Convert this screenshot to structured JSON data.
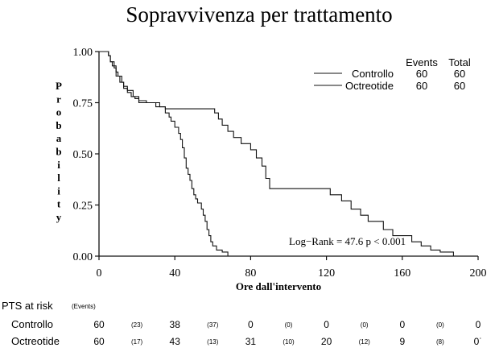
{
  "chart_data": {
    "type": "line",
    "subtype": "kaplan-meier",
    "title": "Sopravvivenza per trattamento",
    "xlabel": "Ore dall'intervento",
    "ylabel": "Probability",
    "xlim": [
      0,
      200
    ],
    "ylim": [
      0,
      1
    ],
    "x_ticks": [
      "0",
      "40",
      "80",
      "120",
      "160",
      "200"
    ],
    "y_ticks": [
      "0.00",
      "0.25",
      "0.50",
      "0.75",
      "1.00"
    ],
    "grid": false,
    "legend_position": "top-right",
    "legend_header": {
      "events": "Events",
      "total": "Total"
    },
    "series": [
      {
        "name": "Controllo",
        "events": "60",
        "total": "60",
        "color": "#111111",
        "steps": [
          [
            0,
            1.0
          ],
          [
            5,
            0.98
          ],
          [
            6,
            0.95
          ],
          [
            7,
            0.93
          ],
          [
            9,
            0.9
          ],
          [
            10,
            0.88
          ],
          [
            12,
            0.85
          ],
          [
            13,
            0.82
          ],
          [
            15,
            0.8
          ],
          [
            17,
            0.78
          ],
          [
            19,
            0.77
          ],
          [
            21,
            0.75
          ],
          [
            24,
            0.75
          ],
          [
            32,
            0.73
          ],
          [
            35,
            0.7
          ],
          [
            37,
            0.68
          ],
          [
            38,
            0.66
          ],
          [
            40,
            0.63
          ],
          [
            42,
            0.6
          ],
          [
            43,
            0.57
          ],
          [
            44,
            0.53
          ],
          [
            45,
            0.48
          ],
          [
            46,
            0.43
          ],
          [
            47,
            0.4
          ],
          [
            48,
            0.37
          ],
          [
            49,
            0.33
          ],
          [
            50,
            0.3
          ],
          [
            51,
            0.28
          ],
          [
            52,
            0.26
          ],
          [
            54,
            0.23
          ],
          [
            55,
            0.2
          ],
          [
            56,
            0.17
          ],
          [
            57,
            0.13
          ],
          [
            58,
            0.1
          ],
          [
            59,
            0.07
          ],
          [
            60,
            0.05
          ],
          [
            62,
            0.03
          ],
          [
            65,
            0.02
          ],
          [
            68,
            0.0
          ]
        ]
      },
      {
        "name": "Octreotide",
        "events": "60",
        "total": "60",
        "color": "#111111",
        "steps": [
          [
            0,
            1.0
          ],
          [
            5,
            0.98
          ],
          [
            6,
            0.95
          ],
          [
            8,
            0.92
          ],
          [
            9,
            0.88
          ],
          [
            11,
            0.85
          ],
          [
            13,
            0.83
          ],
          [
            15,
            0.81
          ],
          [
            18,
            0.78
          ],
          [
            21,
            0.76
          ],
          [
            25,
            0.75
          ],
          [
            30,
            0.73
          ],
          [
            35,
            0.72
          ],
          [
            55,
            0.72
          ],
          [
            60,
            0.72
          ],
          [
            61,
            0.7
          ],
          [
            63,
            0.67
          ],
          [
            65,
            0.64
          ],
          [
            68,
            0.61
          ],
          [
            71,
            0.58
          ],
          [
            75,
            0.55
          ],
          [
            80,
            0.52
          ],
          [
            83,
            0.48
          ],
          [
            86,
            0.44
          ],
          [
            88,
            0.38
          ],
          [
            90,
            0.33
          ],
          [
            110,
            0.33
          ],
          [
            122,
            0.3
          ],
          [
            128,
            0.27
          ],
          [
            133,
            0.23
          ],
          [
            138,
            0.2
          ],
          [
            142,
            0.17
          ],
          [
            150,
            0.13
          ],
          [
            155,
            0.1
          ],
          [
            165,
            0.07
          ],
          [
            170,
            0.05
          ],
          [
            175,
            0.03
          ],
          [
            180,
            0.02
          ],
          [
            187,
            0.0
          ]
        ]
      }
    ],
    "annotation": "Log−Rank = 47.6   p < 0.001"
  },
  "risk_table": {
    "label": "PTS at risk",
    "events_label": "(Events)",
    "rows": [
      {
        "name": "Controllo",
        "at_risk": [
          "60",
          "38",
          "0",
          "0",
          "0",
          "0"
        ],
        "events": [
          "(23)",
          "(37)",
          "(0)",
          "(0)",
          "(0)"
        ]
      },
      {
        "name": "Octreotide",
        "at_risk": [
          "60",
          "43",
          "31",
          "20",
          "9",
          "0˙"
        ],
        "events": [
          "(17)",
          "(13)",
          "(10)",
          "(12)",
          "(8)"
        ]
      }
    ]
  }
}
